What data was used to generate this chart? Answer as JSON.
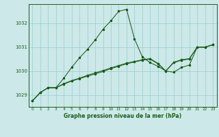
{
  "title": "Graphe pression niveau de la mer (hPa)",
  "bg_color": "#cce8e8",
  "plot_bg_color": "#cce8e8",
  "grid_color": "#99cccc",
  "line_color": "#1a5c1a",
  "xlim": [
    -0.5,
    23.5
  ],
  "ylim": [
    1028.5,
    1032.8
  ],
  "yticks": [
    1029,
    1030,
    1031,
    1032
  ],
  "xticks": [
    0,
    1,
    2,
    3,
    4,
    5,
    6,
    7,
    8,
    9,
    10,
    11,
    12,
    13,
    14,
    15,
    16,
    17,
    18,
    19,
    20,
    21,
    22,
    23
  ],
  "series1_x": [
    0,
    1,
    2,
    3,
    4,
    5,
    6,
    7,
    8,
    9,
    10,
    11,
    12,
    13,
    14,
    15,
    16,
    17,
    18,
    19,
    20,
    21,
    22,
    23
  ],
  "series1_y": [
    1028.75,
    1029.1,
    1029.3,
    1029.3,
    1029.7,
    1030.15,
    1030.55,
    1030.9,
    1031.3,
    1031.75,
    1032.1,
    1032.5,
    1032.58,
    1031.35,
    1030.6,
    1030.35,
    1030.2,
    1030.0,
    1029.95,
    1030.15,
    1030.25,
    1031.0,
    1031.0,
    1031.1
  ],
  "series2_x": [
    0,
    1,
    2,
    3,
    4,
    5,
    6,
    7,
    8,
    9,
    10,
    11,
    12,
    13,
    14,
    15,
    16,
    17,
    18,
    19,
    20,
    21,
    22,
    23
  ],
  "series2_y": [
    1028.75,
    1029.1,
    1029.3,
    1029.3,
    1029.45,
    1029.58,
    1029.68,
    1029.78,
    1029.88,
    1029.98,
    1030.1,
    1030.2,
    1030.3,
    1030.38,
    1030.45,
    1030.5,
    1030.3,
    1030.0,
    1030.35,
    1030.45,
    1030.5,
    1031.0,
    1031.0,
    1031.1
  ],
  "series3_x": [
    0,
    1,
    2,
    3,
    4,
    5,
    6,
    7,
    8,
    9,
    10,
    11,
    12,
    13,
    14,
    15,
    16,
    17,
    18,
    19,
    20,
    21,
    22,
    23
  ],
  "series3_y": [
    1028.75,
    1029.1,
    1029.3,
    1029.3,
    1029.47,
    1029.6,
    1029.7,
    1029.82,
    1029.92,
    1030.02,
    1030.13,
    1030.23,
    1030.33,
    1030.4,
    1030.47,
    1030.52,
    1030.32,
    1030.0,
    1030.37,
    1030.47,
    1030.52,
    1031.0,
    1031.0,
    1031.1
  ]
}
